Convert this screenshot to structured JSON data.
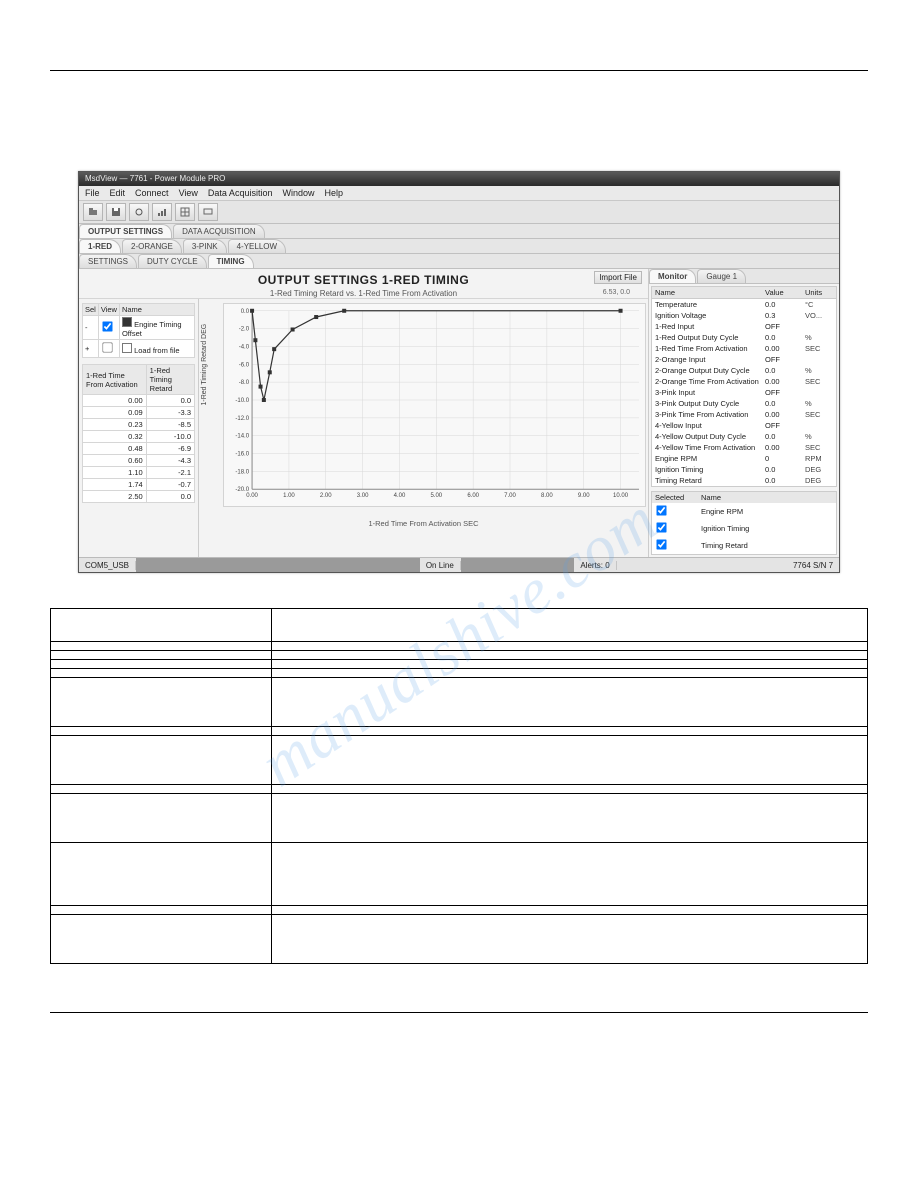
{
  "watermark": "manualshive.com",
  "window": {
    "title": "MsdView — 7761 - Power Module PRO",
    "menubar": [
      "File",
      "Edit",
      "Connect",
      "View",
      "Data Acquisition",
      "Window",
      "Help"
    ]
  },
  "tabs_main": {
    "items": [
      "OUTPUT SETTINGS",
      "DATA ACQUISITION"
    ],
    "active": 0
  },
  "tabs_channel": {
    "items": [
      "1-RED",
      "2-ORANGE",
      "3-PINK",
      "4-YELLOW"
    ],
    "active": 0
  },
  "tabs_view": {
    "items": [
      "SETTINGS",
      "DUTY CYCLE",
      "TIMING"
    ],
    "active": 2
  },
  "section_title": "OUTPUT SETTINGS    1-RED    TIMING",
  "import_button": "Import File",
  "chart": {
    "caption": "1-Red Timing Retard  vs. 1-Red Time From Activation",
    "caption_right": "6.53, 0.0",
    "y_label": "1-Red Timing Retard   DEG",
    "x_label": "1-Red Time From Activation   SEC",
    "type": "line",
    "background_color": "#f8f8f8",
    "grid_color": "#d8d8d8",
    "axis_color": "#888888",
    "line_color": "#333333",
    "marker_color": "#333333",
    "marker_size": 2,
    "line_width": 1.2,
    "xlim": [
      0,
      10.5
    ],
    "ylim": [
      -20,
      0
    ],
    "yticks": [
      0,
      -2,
      -4,
      -6,
      -8,
      -10,
      -12,
      -14,
      -16,
      -18,
      -20
    ],
    "xticks": [
      0,
      1,
      2,
      3,
      4,
      5,
      6,
      7,
      8,
      9,
      10
    ],
    "points": [
      [
        0.0,
        0.0
      ],
      [
        0.09,
        -3.3
      ],
      [
        0.23,
        -8.5
      ],
      [
        0.32,
        -10.0
      ],
      [
        0.48,
        -6.9
      ],
      [
        0.6,
        -4.3
      ],
      [
        1.1,
        -2.1
      ],
      [
        1.74,
        -0.7
      ],
      [
        2.5,
        0.0
      ],
      [
        10.0,
        0.0
      ]
    ]
  },
  "series_grid": {
    "headers": [
      "Sel",
      "View",
      "Name"
    ],
    "rows": [
      {
        "sel": "-",
        "view": true,
        "swatch": "#333333",
        "name": "Engine Timing Offset"
      },
      {
        "sel": "+",
        "view": false,
        "swatch": "#ffffff",
        "name": "Load from file"
      }
    ]
  },
  "data_grid": {
    "headers": [
      "1-Red Time From Activation",
      "1-Red Timing Retard"
    ],
    "rows": [
      [
        "0.00",
        "0.0"
      ],
      [
        "0.09",
        "-3.3"
      ],
      [
        "0.23",
        "-8.5"
      ],
      [
        "0.32",
        "-10.0"
      ],
      [
        "0.48",
        "-6.9"
      ],
      [
        "0.60",
        "-4.3"
      ],
      [
        "1.10",
        "-2.1"
      ],
      [
        "1.74",
        "-0.7"
      ],
      [
        "2.50",
        "0.0"
      ]
    ]
  },
  "right_tabs": {
    "items": [
      "Monitor",
      "Gauge 1"
    ],
    "active": 0
  },
  "monitor": {
    "headers": [
      "Name",
      "Value",
      "Units"
    ],
    "rows": [
      [
        "Temperature",
        "0.0",
        "°C"
      ],
      [
        "Ignition Voltage",
        "0.3",
        "VO..."
      ],
      [
        "1-Red Input",
        "OFF",
        ""
      ],
      [
        "1-Red Output Duty Cycle",
        "0.0",
        "%"
      ],
      [
        "1-Red Time From Activation",
        "0.00",
        "SEC"
      ],
      [
        "2-Orange Input",
        "OFF",
        ""
      ],
      [
        "2-Orange Output Duty Cycle",
        "0.0",
        "%"
      ],
      [
        "2-Orange Time From Activation",
        "0.00",
        "SEC"
      ],
      [
        "3-Pink Input",
        "OFF",
        ""
      ],
      [
        "3-Pink Output Duty Cycle",
        "0.0",
        "%"
      ],
      [
        "3-Pink Time From Activation",
        "0.00",
        "SEC"
      ],
      [
        "4-Yellow Input",
        "OFF",
        ""
      ],
      [
        "4-Yellow Output Duty Cycle",
        "0.0",
        "%"
      ],
      [
        "4-Yellow Time From Activation",
        "0.00",
        "SEC"
      ],
      [
        "Engine RPM",
        "0",
        "RPM"
      ],
      [
        "Ignition Timing",
        "0.0",
        "DEG"
      ],
      [
        "Timing Retard",
        "0.0",
        "DEG"
      ]
    ]
  },
  "gauge_select": {
    "headers": [
      "Selected",
      "Name"
    ],
    "rows": [
      [
        true,
        "Engine RPM"
      ],
      [
        true,
        "Ignition Timing"
      ],
      [
        true,
        "Timing Retard"
      ]
    ]
  },
  "statusbar": {
    "port": "COM5_USB",
    "status": "On Line",
    "alerts": "Alerts: 0",
    "serial": "7764  S/N 7"
  },
  "doc_table": {
    "rows": [
      {
        "left": "",
        "right": "",
        "h": "span-row"
      },
      {
        "left": "",
        "right": "",
        "h": ""
      },
      {
        "left": "",
        "right": "",
        "h": ""
      },
      {
        "left": "",
        "right": "",
        "h": ""
      },
      {
        "left": "",
        "right": "",
        "h": ""
      },
      {
        "left": "",
        "right": "",
        "h": "tall"
      },
      {
        "left": "",
        "right": "",
        "h": ""
      },
      {
        "left": "",
        "right": "",
        "h": "tall"
      },
      {
        "left": "",
        "right": "",
        "h": ""
      },
      {
        "left": "",
        "right": "",
        "h": "tall"
      },
      {
        "left": "",
        "right": "",
        "h": "xl"
      },
      {
        "left": "",
        "right": "",
        "h": ""
      },
      {
        "left": "",
        "right": "",
        "h": "tall"
      }
    ]
  }
}
